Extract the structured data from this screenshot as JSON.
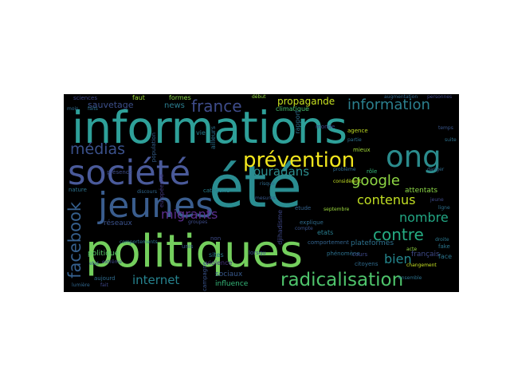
{
  "wordcloud": {
    "background": "#000000",
    "words": {
      "informations": "informations",
      "ete": "été",
      "politiques": "politiques",
      "societe": "société",
      "jeunes": "jeunes",
      "ong": "ong",
      "prevention": "prévention",
      "radicalisation": "radicalisation",
      "france": "france",
      "information": "information",
      "facebook": "facebook",
      "medias": "médias",
      "google": "google",
      "contenus": "contenus",
      "contre": "contre",
      "ouragans": "ouragans",
      "internet": "internet",
      "migrants": "migrants",
      "nombre": "nombre",
      "bien": "bien",
      "propagande": "propagande",
      "sauvetage": "sauvetage",
      "news": "news",
      "formes": "formes",
      "faut": "faut",
      "sciences": "sciences",
      "politique": "politique",
      "reseaux": "réseaux",
      "aujourd": "aujourd",
      "influence": "influence",
      "sociaux": "sociaux",
      "attentats": "attentats",
      "francais": "français",
      "plateformes": "plateformes",
      "etats": "etats",
      "sites": "sites",
      "violence": "violence",
      "campagne": "campagne",
      "vie": "vie",
      "ailleurs": "ailleurs",
      "djihadisme": "djihadisme",
      "climatique": "climatique",
      "rapport": "rapport",
      "etude": "étude",
      "explique": "explique",
      "role": "rôle",
      "lorsqu": "lorsqu",
      "nature": "nature",
      "presence": "présence",
      "population": "population",
      "europeenne": "européenne",
      "categorie": "catégorie",
      "phenomene": "phénomène",
      "fake": "fake",
      "face": "face",
      "cours": "cours",
      "citoyens": "citoyens",
      "changement": "changement",
      "acte": "acte",
      "droite": "droite",
      "agence": "agence",
      "debut": "début",
      "monde": "monde",
      "partie": "partie",
      "mieux": "mieux",
      "probleme": "problème",
      "comportement": "comportement",
      "comportements": "comportements",
      "compte": "compte",
      "non": "non",
      "unis": "unis",
      "extreme": "extrême",
      "etat": "etat",
      "faits": "faits",
      "mois": "mois",
      "lumiere": "lumière",
      "fait": "fait",
      "augmentation": "augmentation",
      "personnes": "personnes",
      "considerent": "considèrent",
      "ensemble": "ensemble",
      "septembre": "septembre",
      "danger": "danger",
      "temps": "temps",
      "suite": "suite",
      "jeune": "jeune",
      "ligne": "ligne",
      "mesures": "mesures",
      "risque": "risque",
      "groupes": "groupes",
      "discours": "discours"
    }
  }
}
